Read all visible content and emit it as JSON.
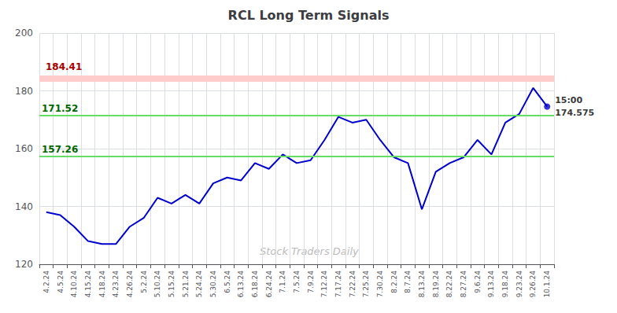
{
  "chart_data": {
    "type": "line",
    "title": "RCL Long Term Signals",
    "categories": [
      "4.2.24",
      "4.5.24",
      "4.10.24",
      "4.15.24",
      "4.18.24",
      "4.23.24",
      "4.26.24",
      "5.2.24",
      "5.10.24",
      "5.15.24",
      "5.21.24",
      "5.24.24",
      "5.30.24",
      "6.5.24",
      "6.13.24",
      "6.18.24",
      "6.24.24",
      "7.1.24",
      "7.5.24",
      "7.9.24",
      "7.12.24",
      "7.17.24",
      "7.22.24",
      "7.25.24",
      "7.30.24",
      "8.2.24",
      "8.7.24",
      "8.13.24",
      "8.19.24",
      "8.22.24",
      "8.27.24",
      "9.6.24",
      "9.13.24",
      "9.18.24",
      "9.23.24",
      "9.26.24",
      "10.1.24"
    ],
    "values": [
      138,
      137,
      133,
      128,
      127,
      127,
      133,
      136,
      143,
      141,
      144,
      141,
      148,
      150,
      149,
      155,
      153,
      158,
      155,
      156,
      163,
      171,
      169,
      170,
      163,
      157,
      155,
      139,
      152,
      155,
      157,
      163,
      158,
      169,
      172,
      181,
      174.575
    ],
    "color": "#0000cc",
    "ylim": [
      120,
      200
    ],
    "yticks": [
      120,
      140,
      160,
      180,
      200
    ],
    "grid": true,
    "hlines": [
      {
        "value": 184.41,
        "label": "184.41",
        "color": "#ffcccc",
        "label_color": "#aa0000"
      },
      {
        "value": 171.52,
        "label": "171.52",
        "color": "#66dd66",
        "label_color": "#006600"
      },
      {
        "value": 157.26,
        "label": "157.26",
        "color": "#66dd66",
        "label_color": "#006600"
      }
    ],
    "last_point_labels": [
      "15:00",
      "174.575"
    ],
    "watermark": {
      "text": "Stock Traders Daily",
      "color": "#bbbbbb"
    }
  }
}
